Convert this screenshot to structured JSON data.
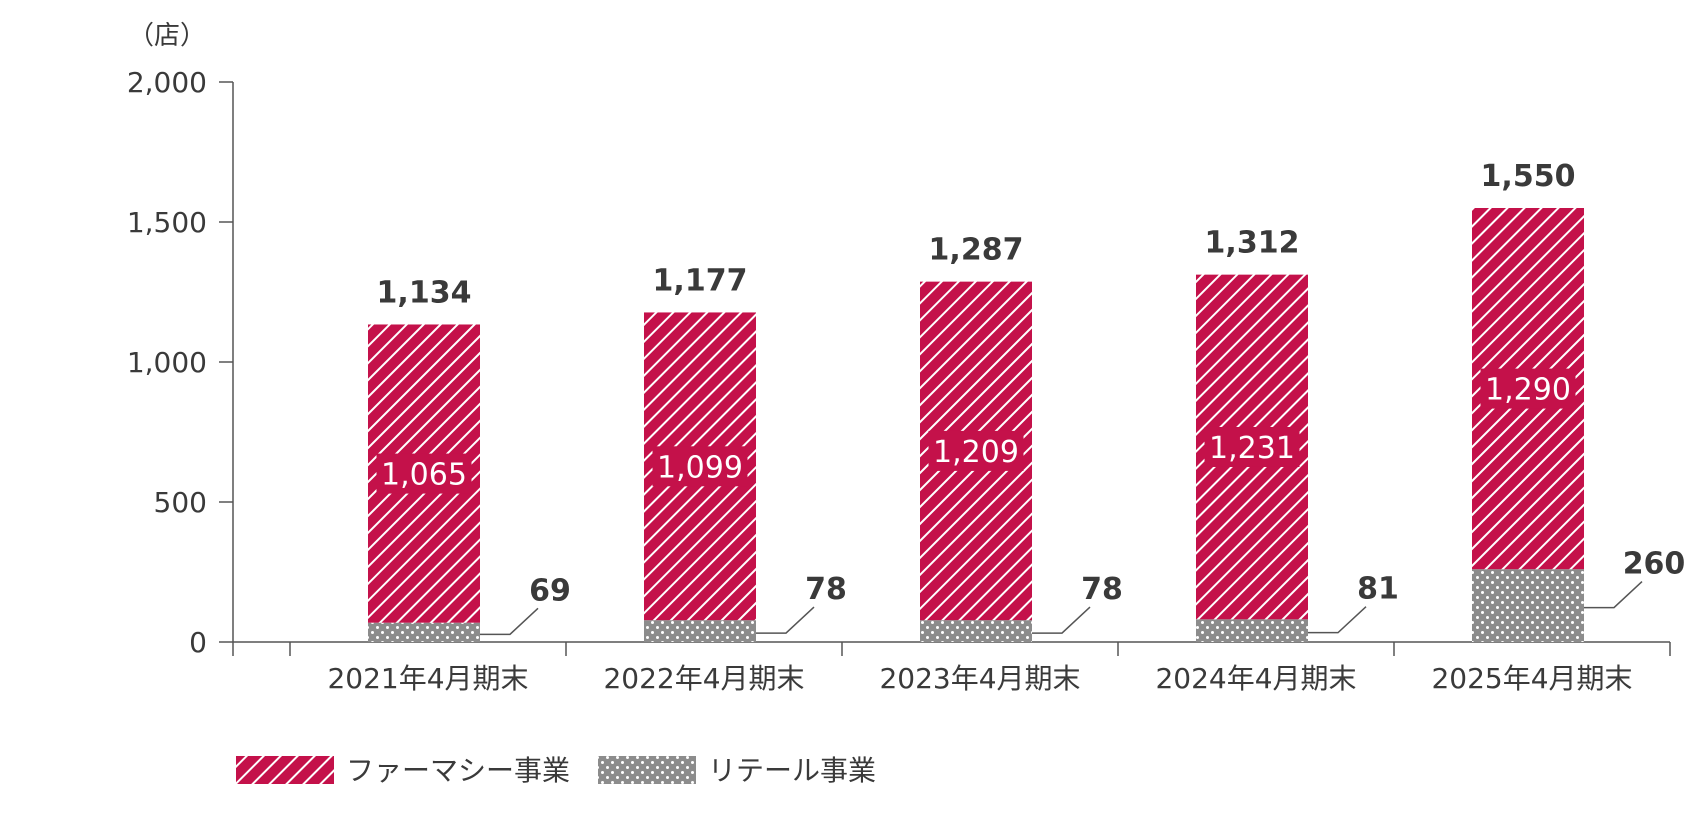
{
  "chart_data": {
    "type": "bar",
    "stacked": true,
    "unit": "（店）",
    "categories": [
      "2021年4月期末",
      "2022年4月期末",
      "2023年4月期末",
      "2024年4月期末",
      "2025年4月期末"
    ],
    "series": [
      {
        "name": "リテール事業",
        "values": [
          69,
          78,
          78,
          81,
          260
        ],
        "color": "#8c8c8c",
        "pattern": "dots"
      },
      {
        "name": "ファーマシー事業",
        "values": [
          1065,
          1099,
          1209,
          1231,
          1290
        ],
        "color": "#c4114a",
        "pattern": "diagonal-stripes"
      }
    ],
    "totals": [
      1134,
      1177,
      1287,
      1312,
      1550
    ],
    "ylim": [
      0,
      2000
    ],
    "yticks": [
      0,
      500,
      1000,
      1500,
      2000
    ],
    "ytick_labels": [
      "0",
      "500",
      "1,000",
      "1,500",
      "2,000"
    ],
    "total_labels": [
      "1,134",
      "1,177",
      "1,287",
      "1,312",
      "1,550"
    ],
    "pharmacy_labels": [
      "1,065",
      "1,099",
      "1,209",
      "1,231",
      "1,290"
    ],
    "retail_labels": [
      "69",
      "78",
      "78",
      "81",
      "260"
    ],
    "grid": false,
    "legend_position": "bottom-left"
  },
  "legend": {
    "pharmacy": "ファーマシー事業",
    "retail": "リテール事業"
  }
}
